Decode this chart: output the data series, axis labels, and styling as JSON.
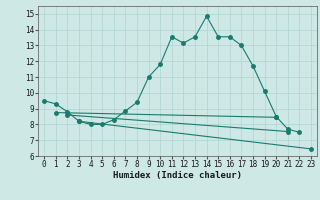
{
  "background_color": "#cde8e5",
  "grid_color": "#b0d4d0",
  "line_color": "#1a7a6e",
  "x_label": "Humidex (Indice chaleur)",
  "ylim": [
    6,
    15.5
  ],
  "xlim": [
    -0.5,
    23.5
  ],
  "yticks": [
    6,
    7,
    8,
    9,
    10,
    11,
    12,
    13,
    14,
    15
  ],
  "xticks": [
    0,
    1,
    2,
    3,
    4,
    5,
    6,
    7,
    8,
    9,
    10,
    11,
    12,
    13,
    14,
    15,
    16,
    17,
    18,
    19,
    20,
    21,
    22,
    23
  ],
  "curve1_x": [
    0,
    1,
    2,
    3,
    4,
    5,
    6,
    7,
    8,
    9,
    10,
    11,
    12,
    13,
    14,
    15,
    16,
    17,
    18,
    19,
    20,
    21,
    22
  ],
  "curve1_y": [
    9.5,
    9.3,
    8.8,
    8.2,
    8.0,
    8.0,
    8.3,
    8.85,
    9.4,
    11.0,
    11.8,
    13.55,
    13.15,
    13.55,
    14.85,
    13.55,
    13.55,
    13.0,
    11.7,
    10.1,
    8.5,
    7.7,
    7.5
  ],
  "line1_x": [
    1,
    20
  ],
  "line1_y": [
    8.75,
    8.45
  ],
  "line2_x": [
    2,
    21
  ],
  "line2_y": [
    8.6,
    7.55
  ],
  "line3_x": [
    3,
    23
  ],
  "line3_y": [
    8.2,
    6.45
  ]
}
